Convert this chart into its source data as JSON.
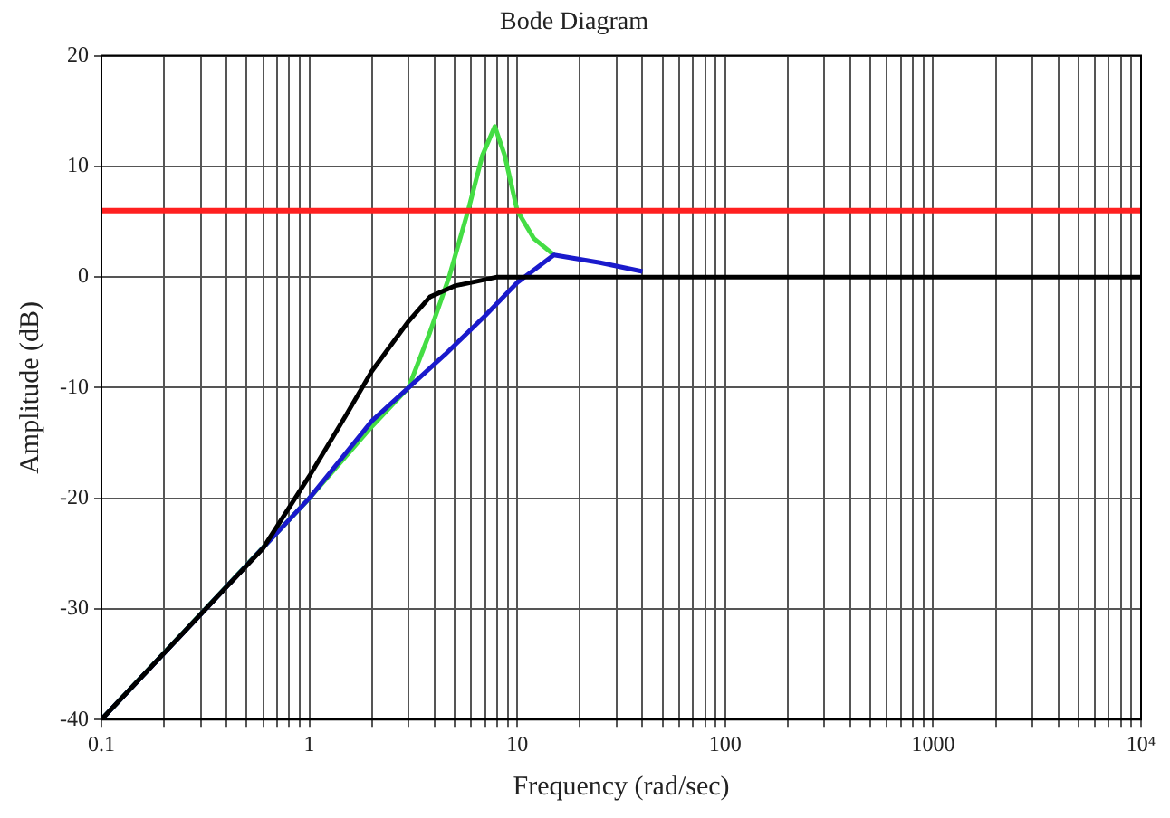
{
  "chart_data": {
    "type": "line",
    "title": "Bode Diagram",
    "xlabel": "Frequency (rad/sec)",
    "ylabel": "Amplitude (dB)",
    "log": "x",
    "grid": true,
    "marker": "none",
    "line_style": "solid",
    "xlim": [
      0.1,
      10000
    ],
    "ylim": [
      -40,
      20
    ],
    "xticks": [
      0.1,
      {
        "value": 0.2,
        "label": null
      },
      {
        "value": 0.3,
        "label": null
      },
      {
        "value": 0.4,
        "label": null
      },
      {
        "value": 0.5,
        "label": null
      },
      {
        "value": 0.6,
        "label": null
      },
      {
        "value": 0.7,
        "label": null
      },
      {
        "value": 0.8,
        "label": null
      },
      {
        "value": 0.9,
        "label": null
      },
      1,
      {
        "value": 2,
        "label": null
      },
      {
        "value": 3,
        "label": null
      },
      {
        "value": 4,
        "label": null
      },
      {
        "value": 5,
        "label": null
      },
      {
        "value": 6,
        "label": null
      },
      {
        "value": 7,
        "label": null
      },
      {
        "value": 8,
        "label": null
      },
      {
        "value": 9,
        "label": null
      },
      10,
      {
        "value": 20,
        "label": null
      },
      {
        "value": 30,
        "label": null
      },
      {
        "value": 40,
        "label": null
      },
      {
        "value": 50,
        "label": null
      },
      {
        "value": 60,
        "label": null
      },
      {
        "value": 70,
        "label": null
      },
      {
        "value": 80,
        "label": null
      },
      {
        "value": 90,
        "label": null
      },
      100,
      {
        "value": 200,
        "label": null
      },
      {
        "value": 300,
        "label": null
      },
      {
        "value": 400,
        "label": null
      },
      {
        "value": 500,
        "label": null
      },
      {
        "value": 600,
        "label": null
      },
      {
        "value": 700,
        "label": null
      },
      {
        "value": 800,
        "label": null
      },
      {
        "value": 900,
        "label": null
      },
      1000,
      {
        "value": 2000,
        "label": null
      },
      {
        "value": 3000,
        "label": null
      },
      {
        "value": 4000,
        "label": null
      },
      {
        "value": 5000,
        "label": null
      },
      {
        "value": 6000,
        "label": null
      },
      {
        "value": 7000,
        "label": null
      },
      {
        "value": 8000,
        "label": null
      },
      {
        "value": 9000,
        "label": null
      },
      {
        "value": 10000,
        "label": "10⁴"
      }
    ],
    "yticks": [
      -40,
      -30,
      -20,
      -10,
      0,
      10,
      20
    ],
    "ref_lines": [
      {
        "axis": "y",
        "value": 6,
        "color": "#ff2020"
      }
    ],
    "series": [
      {
        "color": "#44dd44",
        "x": [
          0.1,
          1,
          2,
          3,
          3.8,
          4.7,
          5.8,
          6.8,
          7.8,
          8.7,
          10,
          12,
          15
        ],
        "values": [
          -40,
          -20,
          -13.5,
          -10,
          -5,
          0,
          6,
          11,
          13.6,
          11,
          6,
          3.5,
          2
        ]
      },
      {
        "color": "#1a1acc",
        "x": [
          0.1,
          0.3,
          1,
          2,
          4.5,
          7,
          10,
          15,
          25,
          40
        ],
        "values": [
          -40,
          -30.5,
          -20,
          -13,
          -7,
          -3.5,
          -0.5,
          2,
          1.3,
          0.5
        ]
      },
      {
        "color": "#000000",
        "x": [
          0.1,
          0.3,
          0.6,
          1,
          1.5,
          2,
          3,
          3.8,
          5,
          8,
          10000
        ],
        "values": [
          -40,
          -30.5,
          -24.5,
          -18,
          -12.5,
          -8.5,
          -4,
          -1.8,
          -0.8,
          0,
          0
        ]
      }
    ]
  }
}
